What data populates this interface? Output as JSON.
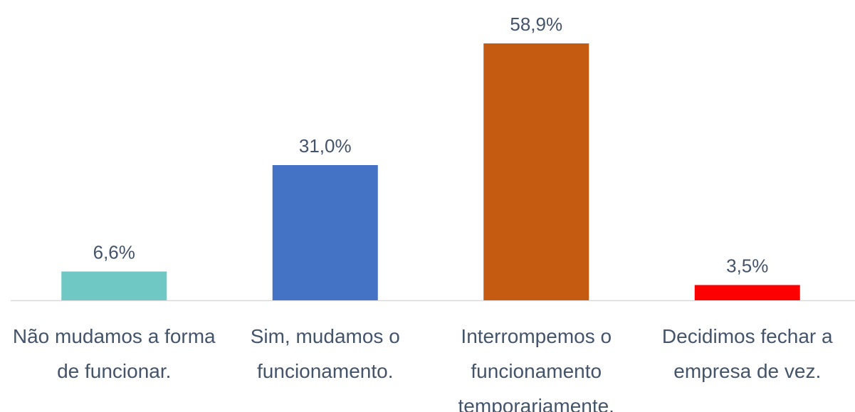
{
  "chart_data": {
    "type": "bar",
    "categories": [
      "Não mudamos a forma de funcionar.",
      "Sim, mudamos o funcionamento.",
      "Interrompemos o funcionamento temporariamente.",
      "Decidimos fechar a empresa de vez."
    ],
    "values": [
      6.6,
      31.0,
      58.9,
      3.5
    ],
    "value_labels": [
      "6,6%",
      "31,0%",
      "58,9%",
      "3,5%"
    ],
    "colors": [
      "#70c8c5",
      "#4472c4",
      "#c55a11",
      "#ff0000"
    ]
  }
}
